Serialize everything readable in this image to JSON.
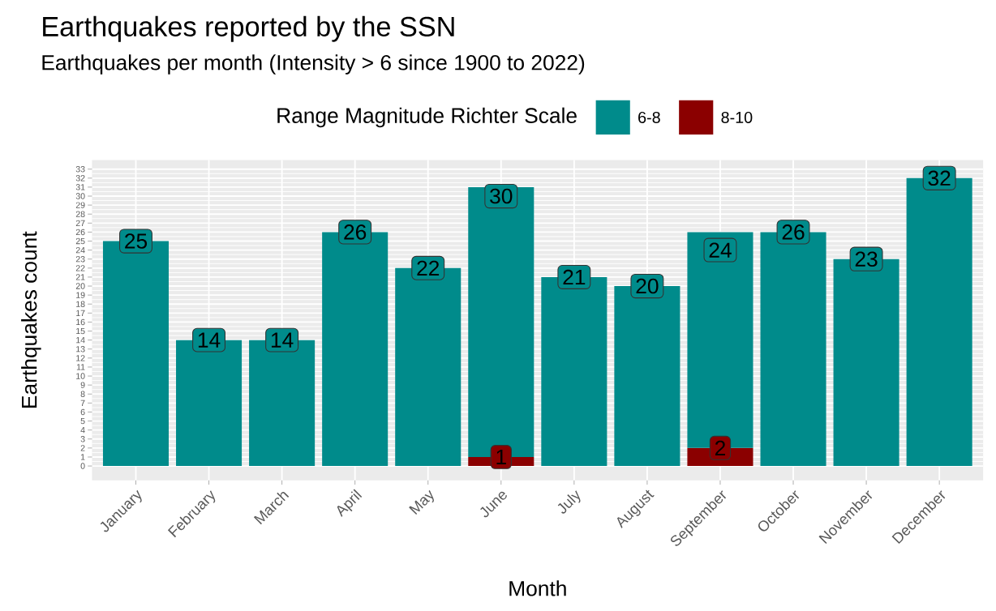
{
  "chart_data": {
    "type": "bar",
    "title": "Earthquakes reported by the SSN",
    "subtitle": "Earthquakes per month (Intensity > 6 since 1900 to 2022)",
    "xlabel": "Month",
    "ylabel": "Earthquakes count",
    "legend_title": "Range Magnitude Richter Scale",
    "categories": [
      "January",
      "February",
      "March",
      "April",
      "May",
      "June",
      "July",
      "August",
      "September",
      "October",
      "November",
      "December"
    ],
    "series": [
      {
        "name": "8-10",
        "color": "#8b0000",
        "values": [
          null,
          null,
          null,
          null,
          null,
          1,
          null,
          null,
          2,
          null,
          null,
          null
        ]
      },
      {
        "name": "6-8",
        "color": "#008b8b",
        "values": [
          25,
          14,
          14,
          26,
          22,
          30,
          21,
          20,
          24,
          26,
          23,
          32
        ]
      }
    ],
    "stacked": true,
    "data_labels": true,
    "legend": "top",
    "grid": true,
    "ylim": [
      -1.6,
      34
    ],
    "yticks": [
      0,
      1,
      2,
      3,
      4,
      5,
      6,
      7,
      8,
      9,
      10,
      11,
      12,
      13,
      14,
      15,
      16,
      17,
      18,
      19,
      20,
      21,
      22,
      23,
      24,
      25,
      26,
      27,
      28,
      29,
      30,
      31,
      32,
      33
    ]
  }
}
